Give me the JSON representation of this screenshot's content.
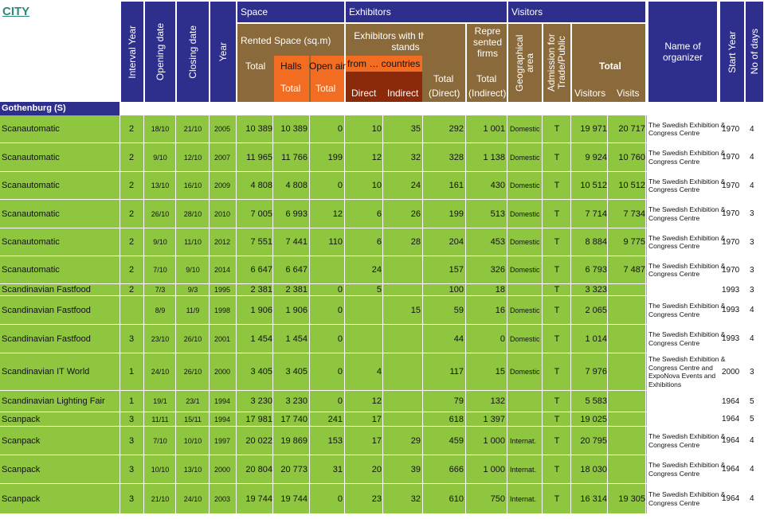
{
  "page_title": "CITY",
  "headers": {
    "interval_year": "Interval Year",
    "opening_date": "Opening date",
    "closing_date": "Closing date",
    "year": "Year",
    "space": "Space",
    "rented_space": "Rented Space (sq.m)",
    "total": "Total",
    "halls": "Halls",
    "open_air": "Open air",
    "halls_total": "Total",
    "open_total": "Total",
    "exhibitors": "Exhibitors",
    "exhibitors_own_stands": "Exhibitors with their own stands",
    "from_countries": "from … countries",
    "direct": "Direct",
    "indirect": "Indirect",
    "total_direct_top": "Total",
    "total_direct": "(Direct)",
    "represented_firms": "Repre sented firms",
    "total_indirect_top": "Total",
    "total_indirect": "(Indirect)",
    "visitors": "Visitors",
    "geographical_area": "Geographical area",
    "admission": "Admission for Trade/Public",
    "visitors_total": "Total",
    "visitors_sub": "Visitors",
    "visits_sub": "Visits",
    "name_of_organizer": "Name of organizer",
    "start_year": "Start Year",
    "no_of_days": "No of days"
  },
  "section_label": "Gothenburg (S)",
  "rows": [
    {
      "name": "Scanautomatic",
      "interval": "2",
      "open": "18/10",
      "close": "21/10",
      "year": "2005",
      "total": "10 389",
      "halls": "10 389",
      "open_air": "0",
      "countries": "10",
      "direct": "",
      "indirect": "35",
      "total_direct": "292",
      "total_indirect": "1 001",
      "geo": "Domestic",
      "adm": "T",
      "visitors": "19 971",
      "visits": "20 717",
      "organizer": "The Swedish Exhibition & Congress Centre",
      "start": "1970",
      "days": "4"
    },
    {
      "name": "Scanautomatic",
      "interval": "2",
      "open": "9/10",
      "close": "12/10",
      "year": "2007",
      "total": "11 965",
      "halls": "11 766",
      "open_air": "199",
      "countries": "12",
      "direct": "",
      "indirect": "32",
      "total_direct": "328",
      "total_indirect": "1 138",
      "geo": "Domestic",
      "adm": "T",
      "visitors": "9 924",
      "visits": "10 760",
      "organizer": "The Swedish Exhibition & Congress Centre",
      "start": "1970",
      "days": "4"
    },
    {
      "name": "Scanautomatic",
      "interval": "2",
      "open": "13/10",
      "close": "16/10",
      "year": "2009",
      "total": "4 808",
      "halls": "4 808",
      "open_air": "0",
      "countries": "10",
      "direct": "",
      "indirect": "24",
      "total_direct": "161",
      "total_indirect": "430",
      "geo": "Domestic",
      "adm": "T",
      "visitors": "10 512",
      "visits": "10 512",
      "organizer": "The Swedish Exhibition & Congress Centre",
      "start": "1970",
      "days": "4"
    },
    {
      "name": "Scanautomatic",
      "interval": "2",
      "open": "26/10",
      "close": "28/10",
      "year": "2010",
      "total": "7 005",
      "halls": "6 993",
      "open_air": "12",
      "countries": "6",
      "direct": "",
      "indirect": "26",
      "total_direct": "199",
      "total_indirect": "513",
      "geo": "Domestic",
      "adm": "T",
      "visitors": "7 714",
      "visits": "7 734",
      "organizer": "The Swedish Exhibition & Congress Centre",
      "start": "1970",
      "days": "3"
    },
    {
      "name": "Scanautomatic",
      "interval": "2",
      "open": "9/10",
      "close": "11/10",
      "year": "2012",
      "total": "7 551",
      "halls": "7 441",
      "open_air": "110",
      "countries": "6",
      "direct": "",
      "indirect": "28",
      "total_direct": "204",
      "total_indirect": "453",
      "geo": "Domestic",
      "adm": "T",
      "visitors": "8 884",
      "visits": "9 775",
      "organizer": "The Swedish Exhibition & Congress Centre",
      "start": "1970",
      "days": "3"
    },
    {
      "name": "Scanautomatic",
      "interval": "2",
      "open": "7/10",
      "close": "9/10",
      "year": "2014",
      "total": "6 647",
      "halls": "6 647",
      "open_air": "",
      "countries": "24",
      "direct": "",
      "indirect": "",
      "total_direct": "157",
      "total_indirect": "326",
      "geo": "Domestic",
      "adm": "T",
      "visitors": "6 793",
      "visits": "7 487",
      "organizer": "The Swedish Exhibition & Congress Centre",
      "start": "1970",
      "days": "3"
    },
    {
      "name": "Scandinavian Fastfood",
      "interval": "2",
      "open": "7/3",
      "close": "9/3",
      "year": "1995",
      "total": "2 381",
      "halls": "2 381",
      "open_air": "0",
      "countries": "5",
      "direct": "",
      "indirect": "",
      "total_direct": "100",
      "total_indirect": "18",
      "geo": "",
      "adm": "T",
      "visitors": "3 323",
      "visits": "",
      "organizer": "",
      "start": "1993",
      "days": "3"
    },
    {
      "name": "Scandinavian Fastfood",
      "interval": "",
      "open": "8/9",
      "close": "11/9",
      "year": "1998",
      "total": "1 906",
      "halls": "1 906",
      "open_air": "0",
      "countries": "",
      "direct": "",
      "indirect": "15",
      "total_direct": "59",
      "total_indirect": "16",
      "geo": "Domestic",
      "adm": "T",
      "visitors": "2 065",
      "visits": "",
      "organizer": "The Swedish Exhibition & Congress Centre",
      "start": "1993",
      "days": "4"
    },
    {
      "name": "Scandinavian Fastfood",
      "interval": "3",
      "open": "23/10",
      "close": "26/10",
      "year": "2001",
      "total": "1 454",
      "halls": "1 454",
      "open_air": "0",
      "countries": "",
      "direct": "",
      "indirect": "",
      "total_direct": "44",
      "total_indirect": "0",
      "geo": "Domestic",
      "adm": "T",
      "visitors": "1 014",
      "visits": "",
      "organizer": "The Swedish Exhibition & Congress Centre",
      "start": "1993",
      "days": "4"
    },
    {
      "name": "Scandinavian IT World",
      "interval": "1",
      "open": "24/10",
      "close": "26/10",
      "year": "2000",
      "total": "3 405",
      "halls": "3 405",
      "open_air": "0",
      "countries": "4",
      "direct": "",
      "indirect": "",
      "total_direct": "117",
      "total_indirect": "15",
      "geo": "Domestic",
      "adm": "T",
      "visitors": "7 976",
      "visits": "",
      "organizer": "The Swedish Exhibition & Congress Centre and ExpoNova Events and Exhibitions",
      "start": "2000",
      "days": "3"
    },
    {
      "name": "Scandinavian Lighting Fair",
      "interval": "1",
      "open": "19/1",
      "close": "23/1",
      "year": "1994",
      "total": "3 230",
      "halls": "3 230",
      "open_air": "0",
      "countries": "12",
      "direct": "",
      "indirect": "",
      "total_direct": "79",
      "total_indirect": "132",
      "geo": "",
      "adm": "T",
      "visitors": "5 583",
      "visits": "",
      "organizer": "",
      "start": "1964",
      "days": "5"
    },
    {
      "name": "Scanpack",
      "interval": "3",
      "open": "11/11",
      "close": "15/11",
      "year": "1994",
      "total": "17 981",
      "halls": "17 740",
      "open_air": "241",
      "countries": "17",
      "direct": "",
      "indirect": "",
      "total_direct": "618",
      "total_indirect": "1 397",
      "geo": "",
      "adm": "T",
      "visitors": "19 025",
      "visits": "",
      "organizer": "",
      "start": "1964",
      "days": "5"
    },
    {
      "name": "Scanpack",
      "interval": "3",
      "open": "7/10",
      "close": "10/10",
      "year": "1997",
      "total": "20 022",
      "halls": "19 869",
      "open_air": "153",
      "countries": "17",
      "direct": "",
      "indirect": "29",
      "total_direct": "459",
      "total_indirect": "1 000",
      "geo": "Internat.",
      "adm": "T",
      "visitors": "20 795",
      "visits": "",
      "organizer": "The Swedish Exhibition & Congress Centre",
      "start": "1964",
      "days": "4"
    },
    {
      "name": "Scanpack",
      "interval": "3",
      "open": "10/10",
      "close": "13/10",
      "year": "2000",
      "total": "20 804",
      "halls": "20 773",
      "open_air": "31",
      "countries": "20",
      "direct": "",
      "indirect": "39",
      "total_direct": "666",
      "total_indirect": "1 000",
      "geo": "Internat.",
      "adm": "T",
      "visitors": "18 030",
      "visits": "",
      "organizer": "The Swedish Exhibition & Congress Centre",
      "start": "1964",
      "days": "4"
    },
    {
      "name": "Scanpack",
      "interval": "3",
      "open": "21/10",
      "close": "24/10",
      "year": "2003",
      "total": "19 744",
      "halls": "19 744",
      "open_air": "0",
      "countries": "23",
      "direct": "",
      "indirect": "32",
      "total_direct": "610",
      "total_indirect": "750",
      "geo": "Internat.",
      "adm": "T",
      "visitors": "16 314",
      "visits": "19 305",
      "organizer": "The Swedish Exhibition & Congress Centre",
      "start": "1964",
      "days": "4"
    }
  ]
}
